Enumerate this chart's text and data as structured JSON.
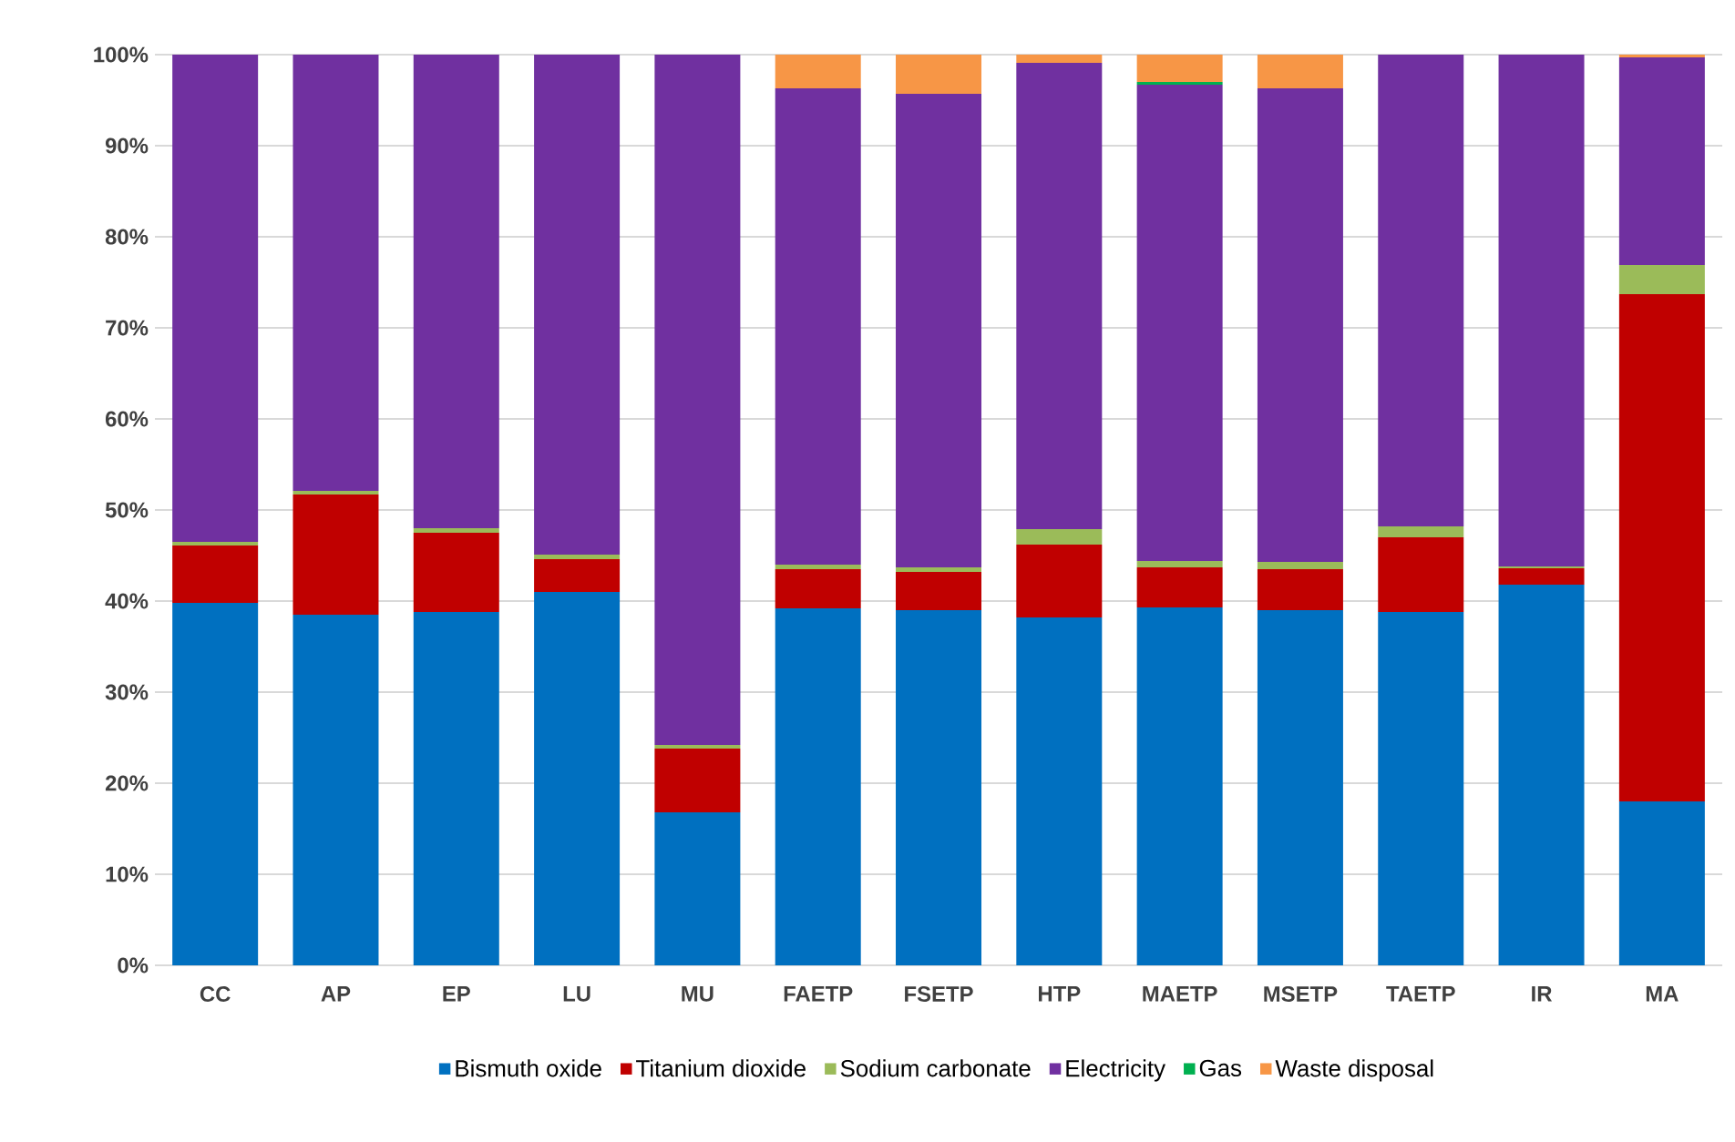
{
  "chart_data": {
    "type": "bar",
    "stacked": true,
    "categories": [
      "CC",
      "AP",
      "EP",
      "LU",
      "MU",
      "FAETP",
      "FSETP",
      "HTP",
      "MAETP",
      "MSETP",
      "TAETP",
      "IR",
      "MA"
    ],
    "series": [
      {
        "name": "Bismuth oxide",
        "color": "#0070c0",
        "values": [
          39.8,
          38.5,
          38.8,
          41.0,
          16.8,
          39.2,
          39.0,
          38.2,
          39.3,
          39.0,
          38.8,
          41.8,
          18.0
        ]
      },
      {
        "name": "Titanium dioxide",
        "color": "#c00000",
        "values": [
          6.3,
          13.2,
          8.7,
          3.6,
          7.0,
          4.3,
          4.2,
          8.0,
          4.4,
          4.5,
          8.2,
          1.8,
          55.7
        ]
      },
      {
        "name": "Sodium carbonate",
        "color": "#9bbb59",
        "values": [
          0.4,
          0.4,
          0.5,
          0.5,
          0.4,
          0.5,
          0.5,
          1.7,
          0.7,
          0.8,
          1.2,
          0.2,
          3.2
        ]
      },
      {
        "name": "Electricity",
        "color": "#7030a0",
        "values": [
          53.5,
          47.9,
          52.0,
          54.9,
          75.8,
          52.3,
          52.0,
          51.2,
          52.3,
          52.0,
          51.8,
          56.2,
          22.8
        ]
      },
      {
        "name": "Gas",
        "color": "#00b050",
        "values": [
          0,
          0,
          0,
          0,
          0,
          0,
          0,
          0,
          0.3,
          0,
          0,
          0,
          0
        ]
      },
      {
        "name": "Waste disposal",
        "color": "#f79646",
        "values": [
          0,
          0,
          0,
          0,
          0,
          3.7,
          4.3,
          0.9,
          3.0,
          3.7,
          0,
          0,
          0.3
        ]
      }
    ],
    "ylim": [
      0,
      100
    ],
    "yticks": [
      {
        "value": 0,
        "label": "0%"
      },
      {
        "value": 10,
        "label": "10%"
      },
      {
        "value": 20,
        "label": "20%"
      },
      {
        "value": 30,
        "label": "30%"
      },
      {
        "value": 40,
        "label": "40%"
      },
      {
        "value": 50,
        "label": "50%"
      },
      {
        "value": 60,
        "label": "60%"
      },
      {
        "value": 70,
        "label": "70%"
      },
      {
        "value": 80,
        "label": "80%"
      },
      {
        "value": 90,
        "label": "90%"
      },
      {
        "value": 100,
        "label": "100%"
      }
    ],
    "grid": "y",
    "legend": "bottom"
  }
}
